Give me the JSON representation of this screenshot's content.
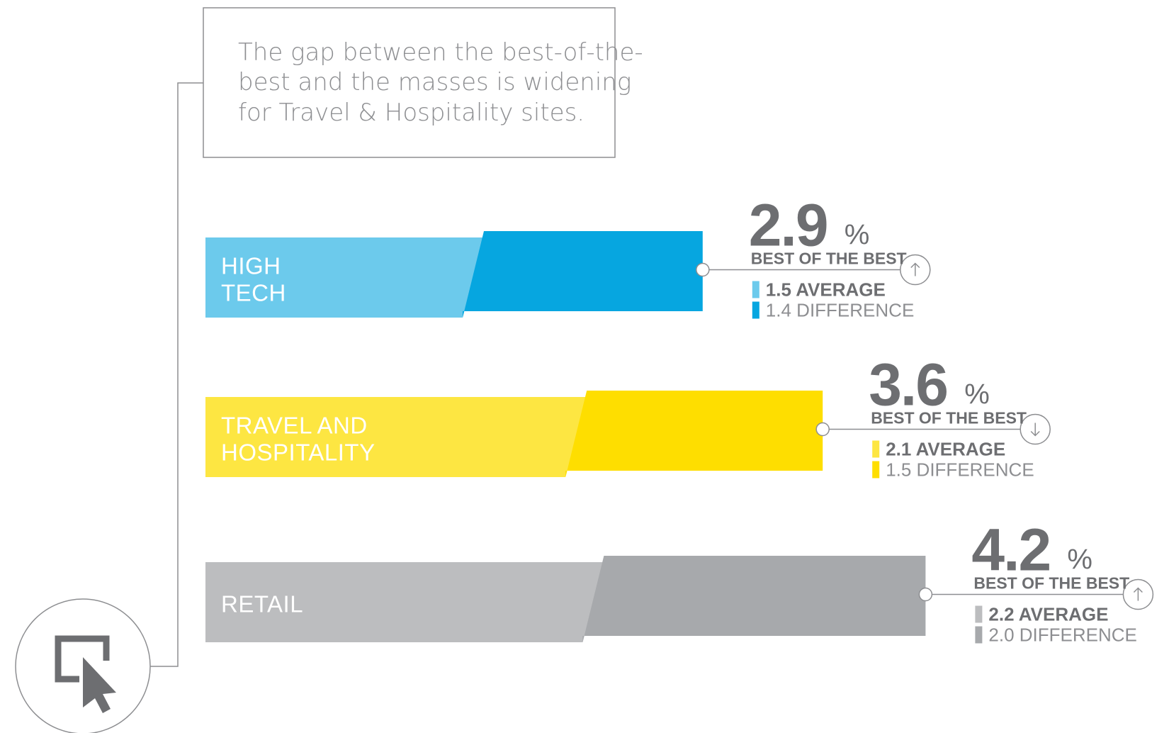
{
  "callout": {
    "lines": [
      "The gap between the best-of-the-",
      "best and the masses is widening",
      "for Travel & Hospitality sites."
    ]
  },
  "chart_data": {
    "type": "bar",
    "unit": "%",
    "categories": [
      "HIGH TECH",
      "TRAVEL AND HOSPITALITY",
      "RETAIL"
    ],
    "series": [
      {
        "name": "AVERAGE",
        "values": [
          1.5,
          2.1,
          2.2
        ]
      },
      {
        "name": "DIFFERENCE",
        "values": [
          1.4,
          1.5,
          2.0
        ]
      },
      {
        "name": "BEST OF THE BEST",
        "values": [
          2.9,
          3.6,
          4.2
        ]
      }
    ],
    "bars": [
      {
        "category_lines": [
          "HIGH",
          "TECH"
        ],
        "best": "2.9",
        "pct": "%",
        "best_label": "BEST OF THE BEST",
        "average_label": "1.5 AVERAGE",
        "difference_label": "1.4 DIFFERENCE",
        "trend": "up",
        "light_color": "#6ccaec",
        "dark_color": "#06a6e0"
      },
      {
        "category_lines": [
          "TRAVEL AND",
          "HOSPITALITY"
        ],
        "best": "3.6",
        "pct": "%",
        "best_label": "BEST OF THE BEST",
        "average_label": "2.1 AVERAGE",
        "difference_label": "1.5 DIFFERENCE",
        "trend": "down",
        "light_color": "#fde642",
        "dark_color": "#fede00"
      },
      {
        "category_lines": [
          "RETAIL"
        ],
        "best": "4.2",
        "pct": "%",
        "best_label": "BEST OF THE BEST",
        "average_label": "2.2 AVERAGE",
        "difference_label": "2.0 DIFFERENCE",
        "trend": "up",
        "light_color": "#bcbdbf",
        "dark_color": "#a7a9ac"
      }
    ]
  },
  "icons": {
    "cursor": "cursor-click-icon",
    "trend_up": "arrow-up-icon",
    "trend_down": "arrow-down-icon"
  },
  "colors": {
    "text_dark": "#6d6e71",
    "text_light": "#8d8e91",
    "line": "#8d8e91"
  }
}
